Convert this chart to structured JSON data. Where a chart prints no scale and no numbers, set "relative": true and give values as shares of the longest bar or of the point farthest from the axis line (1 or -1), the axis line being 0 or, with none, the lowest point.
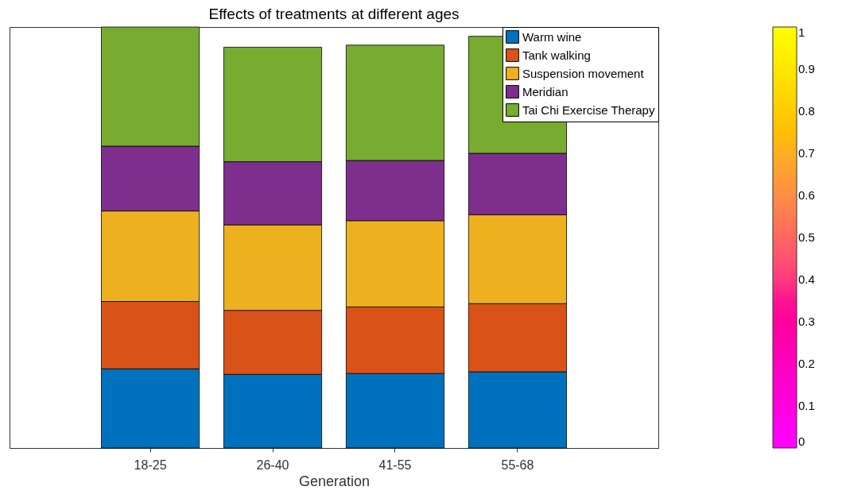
{
  "chart_data": {
    "type": "bar",
    "title": "Effects of treatments at different ages",
    "xlabel": "Generation",
    "categories": [
      "18-25",
      "26-40",
      "41-55",
      "55-68"
    ],
    "stacked": true,
    "relative": true,
    "legend": "top right",
    "grid": false,
    "series": [
      {
        "name": "Warm wine",
        "color": "#0072bd",
        "values": [
          0.188,
          0.175,
          0.177,
          0.181
        ]
      },
      {
        "name": "Tank walking",
        "color": "#d95319",
        "values": [
          0.16,
          0.152,
          0.158,
          0.162
        ]
      },
      {
        "name": "Suspension movement",
        "color": "#edb120",
        "values": [
          0.215,
          0.203,
          0.205,
          0.211
        ]
      },
      {
        "name": "Meridian",
        "color": "#7e2f8e",
        "values": [
          0.154,
          0.15,
          0.143,
          0.146
        ]
      },
      {
        "name": "Tai Chi Exercise Therapy",
        "color": "#77ac30",
        "values": [
          0.283,
          0.272,
          0.274,
          0.278
        ]
      }
    ],
    "clim": [
      0,
      1
    ],
    "cticks": [
      0,
      0.1,
      0.2,
      0.3,
      0.4,
      0.5,
      0.6,
      0.7,
      0.8,
      0.9,
      1
    ]
  }
}
